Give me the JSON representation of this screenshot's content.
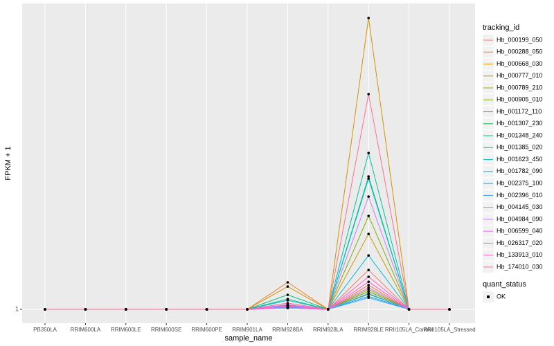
{
  "chart_data": {
    "type": "line",
    "x_label": "sample_name",
    "y_label": "FPKM + 1",
    "categories": [
      "PB350LA",
      "RRIM600LA",
      "RRIM600LE",
      "RRIM600SE",
      "RRIM600PE",
      "RRIM901LA",
      "RRIM928BA",
      "RRIM928LA",
      "RRIM928LE",
      "RRII105LA_Control",
      "RRII105LA_Stressed"
    ],
    "ylim": [
      0.05,
      22.05
    ],
    "yticks": [
      1
    ],
    "grid": true,
    "legend_title": "tracking_id",
    "legend_position": "right",
    "point_color": "#000000",
    "series": [
      {
        "name": "Hb_000199_050",
        "color": "#F8766D",
        "values": [
          1,
          1,
          1,
          1,
          1,
          1,
          1.2,
          1,
          3.71,
          1,
          1
        ]
      },
      {
        "name": "Hb_000288_050",
        "color": "#EA8331",
        "values": [
          1,
          1,
          1,
          1,
          1,
          1,
          2.86,
          1,
          2.67,
          1,
          1
        ]
      },
      {
        "name": "Hb_000668_030",
        "color": "#D89000",
        "values": [
          1,
          1,
          1,
          1,
          1,
          1,
          2.57,
          1,
          21.05,
          1,
          1
        ]
      },
      {
        "name": "Hb_000777_010",
        "color": "#C09B00",
        "values": [
          1,
          1,
          1,
          1,
          1,
          1,
          1.2,
          1,
          6.19,
          1,
          1
        ]
      },
      {
        "name": "Hb_000789_210",
        "color": "#A3A500",
        "values": [
          1,
          1,
          1,
          1,
          1,
          1,
          1.15,
          1,
          2.38,
          1,
          1
        ]
      },
      {
        "name": "Hb_000905_010",
        "color": "#7CAE00",
        "values": [
          1,
          1,
          1,
          1,
          1,
          1,
          1.25,
          1,
          7.43,
          1,
          1
        ]
      },
      {
        "name": "Hb_001172_110",
        "color": "#39B600",
        "values": [
          1,
          1,
          1,
          1,
          1,
          1,
          1.1,
          1,
          2.24,
          1,
          1
        ]
      },
      {
        "name": "Hb_001307_230",
        "color": "#00BB4E",
        "values": [
          1,
          1,
          1,
          1,
          1,
          1,
          1.15,
          1,
          2.05,
          1,
          1
        ]
      },
      {
        "name": "Hb_001348_240",
        "color": "#00BF7D",
        "values": [
          1,
          1,
          1,
          1,
          1,
          1,
          2.0,
          1,
          10.14,
          1,
          1
        ]
      },
      {
        "name": "Hb_001385_020",
        "color": "#00C1A3",
        "values": [
          1,
          1,
          1,
          1,
          1,
          1,
          1.71,
          1,
          11.76,
          1,
          1
        ]
      },
      {
        "name": "Hb_001623_450",
        "color": "#00BFC4",
        "values": [
          1,
          1,
          1,
          1,
          1,
          1,
          1.62,
          1,
          10.0,
          1,
          1
        ]
      },
      {
        "name": "Hb_001782_090",
        "color": "#00BAE0",
        "values": [
          1,
          1,
          1,
          1,
          1,
          1,
          1.3,
          1,
          4.71,
          1,
          1
        ]
      },
      {
        "name": "Hb_002375_100",
        "color": "#00B0F6",
        "values": [
          1,
          1,
          1,
          1,
          1,
          1,
          1.1,
          1,
          1.9,
          1,
          1
        ]
      },
      {
        "name": "Hb_002396_010",
        "color": "#35A2FF",
        "values": [
          1,
          1,
          1,
          1,
          1,
          1,
          1.15,
          1,
          1.8,
          1,
          1
        ]
      },
      {
        "name": "Hb_004145_030",
        "color": "#9590FF",
        "values": [
          1,
          1,
          1,
          1,
          1,
          1,
          1.1,
          1,
          2.1,
          1,
          1
        ]
      },
      {
        "name": "Hb_004984_090",
        "color": "#C77CFF",
        "values": [
          1,
          1,
          1,
          1,
          1,
          1,
          1.33,
          1,
          8.76,
          1,
          1
        ]
      },
      {
        "name": "Hb_006599_040",
        "color": "#E76BF3",
        "values": [
          1,
          1,
          1,
          1,
          1,
          1,
          1.2,
          1,
          2.5,
          1,
          1
        ]
      },
      {
        "name": "Hb_026317_020",
        "color": "#FA62DB",
        "values": [
          1,
          1,
          1,
          1,
          1,
          1,
          1.1,
          1,
          2.9,
          1,
          1
        ]
      },
      {
        "name": "Hb_133913_010",
        "color": "#FF62BC",
        "values": [
          1,
          1,
          1,
          1,
          1,
          1,
          1.25,
          1,
          3.24,
          1,
          1
        ]
      },
      {
        "name": "Hb_174010_030",
        "color": "#FF6C91",
        "values": [
          1,
          1,
          1,
          1,
          1,
          1,
          1.43,
          1,
          15.81,
          1,
          1
        ]
      }
    ],
    "legend2_title": "quant_status",
    "legend2_items": [
      "OK"
    ]
  }
}
